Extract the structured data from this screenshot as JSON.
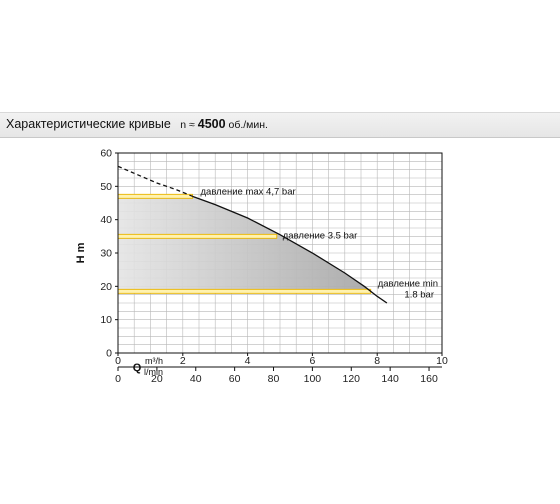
{
  "header": {
    "title": "Характеристические кривые",
    "speed_prefix": "n ≈",
    "speed_value": "4500",
    "speed_unit": "об./мин."
  },
  "chart_data": {
    "type": "line",
    "ylabel": "H m",
    "xlabel": "Q",
    "x_unit_primary": "m³/h",
    "x_unit_secondary": "l/min",
    "xlim": [
      0,
      10
    ],
    "ylim": [
      0,
      60
    ],
    "x_ticks": [
      "0",
      "2",
      "4",
      "6",
      "8",
      "10"
    ],
    "x2_ticks": [
      "0",
      "20",
      "40",
      "60",
      "80",
      "100",
      "120",
      "140",
      "160"
    ],
    "y_ticks": [
      "0",
      "10",
      "20",
      "30",
      "40",
      "50",
      "60"
    ],
    "x2_per_x": 16.667,
    "grid": true,
    "series": [
      {
        "style": "dashed",
        "x": [
          0,
          0.6,
          1.2,
          1.8,
          2.3
        ],
        "y": [
          56,
          53.5,
          51,
          49,
          47
        ]
      },
      {
        "style": "solid",
        "x": [
          2.3,
          3.0,
          4.0,
          5.0,
          6.0,
          7.0,
          7.6,
          8.0,
          8.3
        ],
        "y": [
          47,
          44.5,
          40.5,
          35.5,
          30,
          24,
          20,
          17,
          15
        ]
      }
    ],
    "pressure_lines": [
      {
        "label": "давление max 4,7 bar",
        "h": 47,
        "x_end": 2.3
      },
      {
        "label": "давление 3.5 bar",
        "h": 35,
        "x_end": 4.9
      },
      {
        "label": "давление min",
        "label2": "1.8 bar",
        "h": 18.5,
        "x_end": 7.8
      }
    ],
    "colors": {
      "line": "#111111",
      "pressure": "#e8b400",
      "grid": "#b8b8b8",
      "fill": "#b0b0b0"
    }
  }
}
